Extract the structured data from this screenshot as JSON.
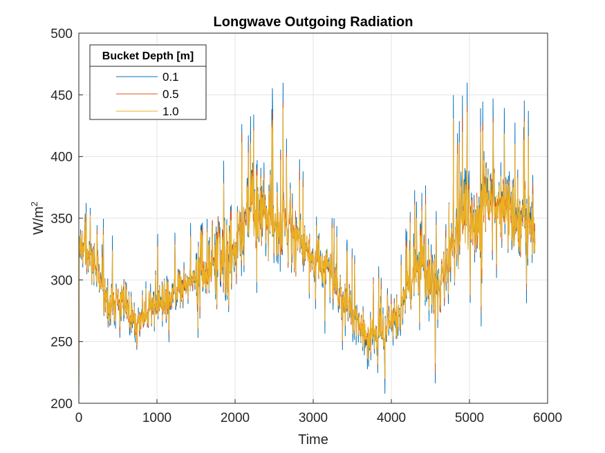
{
  "chart_data": {
    "type": "line",
    "title": "Longwave Outgoing Radiation",
    "xlabel": "Time",
    "ylabel_base": "W/m",
    "ylabel_sup": "2",
    "xlim": [
      0,
      6000
    ],
    "ylim": [
      200,
      500
    ],
    "xticks": [
      0,
      1000,
      2000,
      3000,
      4000,
      5000,
      6000
    ],
    "yticks": [
      200,
      250,
      300,
      350,
      400,
      450,
      500
    ],
    "grid": true,
    "legend": {
      "title": "Bucket Depth [m]",
      "placement": "top-left"
    },
    "series": [
      {
        "name": "0.1",
        "color": "#0072BD",
        "noise_scale": 1.0,
        "x": [
          0,
          5,
          100,
          200,
          300,
          400,
          500,
          600,
          700,
          800,
          900,
          1000,
          1100,
          1200,
          1300,
          1400,
          1500,
          1600,
          1700,
          1800,
          1900,
          2000,
          2100,
          2200,
          2300,
          2400,
          2500,
          2600,
          2700,
          2800,
          2900,
          3000,
          3100,
          3200,
          3300,
          3400,
          3500,
          3600,
          3700,
          3800,
          3900,
          4000,
          4100,
          4200,
          4300,
          4400,
          4500,
          4600,
          4700,
          4800,
          4900,
          5000,
          5100,
          5200,
          5300,
          5400,
          5500,
          5600,
          5700,
          5800,
          5840
        ],
        "y": [
          200,
          330,
          320,
          312,
          290,
          280,
          285,
          282,
          265,
          268,
          280,
          275,
          282,
          290,
          295,
          298,
          305,
          305,
          310,
          318,
          315,
          330,
          345,
          360,
          355,
          355,
          345,
          350,
          345,
          335,
          325,
          318,
          312,
          310,
          295,
          280,
          272,
          262,
          250,
          262,
          255,
          265,
          272,
          295,
          310,
          310,
          300,
          290,
          315,
          330,
          350,
          352,
          345,
          362,
          360,
          365,
          355,
          350,
          350,
          345,
          315
        ]
      },
      {
        "name": "0.5",
        "color": "#D95319",
        "noise_scale": 0.85,
        "x": [
          0,
          5,
          100,
          200,
          300,
          400,
          500,
          600,
          700,
          800,
          900,
          1000,
          1100,
          1200,
          1300,
          1400,
          1500,
          1600,
          1700,
          1800,
          1900,
          2000,
          2100,
          2200,
          2300,
          2400,
          2500,
          2600,
          2700,
          2800,
          2900,
          3000,
          3100,
          3200,
          3300,
          3400,
          3500,
          3600,
          3700,
          3800,
          3900,
          4000,
          4100,
          4200,
          4300,
          4400,
          4500,
          4600,
          4700,
          4800,
          4900,
          5000,
          5100,
          5200,
          5300,
          5400,
          5500,
          5600,
          5700,
          5800,
          5840
        ],
        "y": [
          200,
          330,
          320,
          312,
          290,
          280,
          285,
          282,
          266,
          269,
          280,
          276,
          282,
          290,
          295,
          298,
          305,
          305,
          310,
          318,
          315,
          330,
          345,
          358,
          354,
          354,
          345,
          350,
          344,
          335,
          325,
          318,
          312,
          310,
          295,
          281,
          273,
          263,
          252,
          263,
          256,
          266,
          273,
          295,
          309,
          309,
          300,
          291,
          315,
          329,
          348,
          350,
          344,
          360,
          358,
          362,
          354,
          349,
          349,
          344,
          316
        ]
      },
      {
        "name": "1.0",
        "color": "#EDB120",
        "noise_scale": 0.8,
        "x": [
          0,
          5,
          100,
          200,
          300,
          400,
          500,
          600,
          700,
          800,
          900,
          1000,
          1100,
          1200,
          1300,
          1400,
          1500,
          1600,
          1700,
          1800,
          1900,
          2000,
          2100,
          2200,
          2300,
          2400,
          2500,
          2600,
          2700,
          2800,
          2900,
          3000,
          3100,
          3200,
          3300,
          3400,
          3500,
          3600,
          3700,
          3800,
          3900,
          4000,
          4100,
          4200,
          4300,
          4400,
          4500,
          4600,
          4700,
          4800,
          4900,
          5000,
          5100,
          5200,
          5300,
          5400,
          5500,
          5600,
          5700,
          5800,
          5840
        ],
        "y": [
          200,
          330,
          320,
          312,
          290,
          280,
          285,
          282,
          266,
          269,
          280,
          276,
          282,
          290,
          295,
          298,
          305,
          305,
          310,
          318,
          315,
          330,
          345,
          358,
          354,
          354,
          345,
          350,
          344,
          335,
          325,
          318,
          312,
          310,
          295,
          281,
          273,
          263,
          252,
          263,
          256,
          266,
          273,
          295,
          309,
          309,
          300,
          291,
          315,
          329,
          348,
          350,
          344,
          360,
          358,
          362,
          354,
          349,
          349,
          344,
          316
        ]
      }
    ]
  }
}
